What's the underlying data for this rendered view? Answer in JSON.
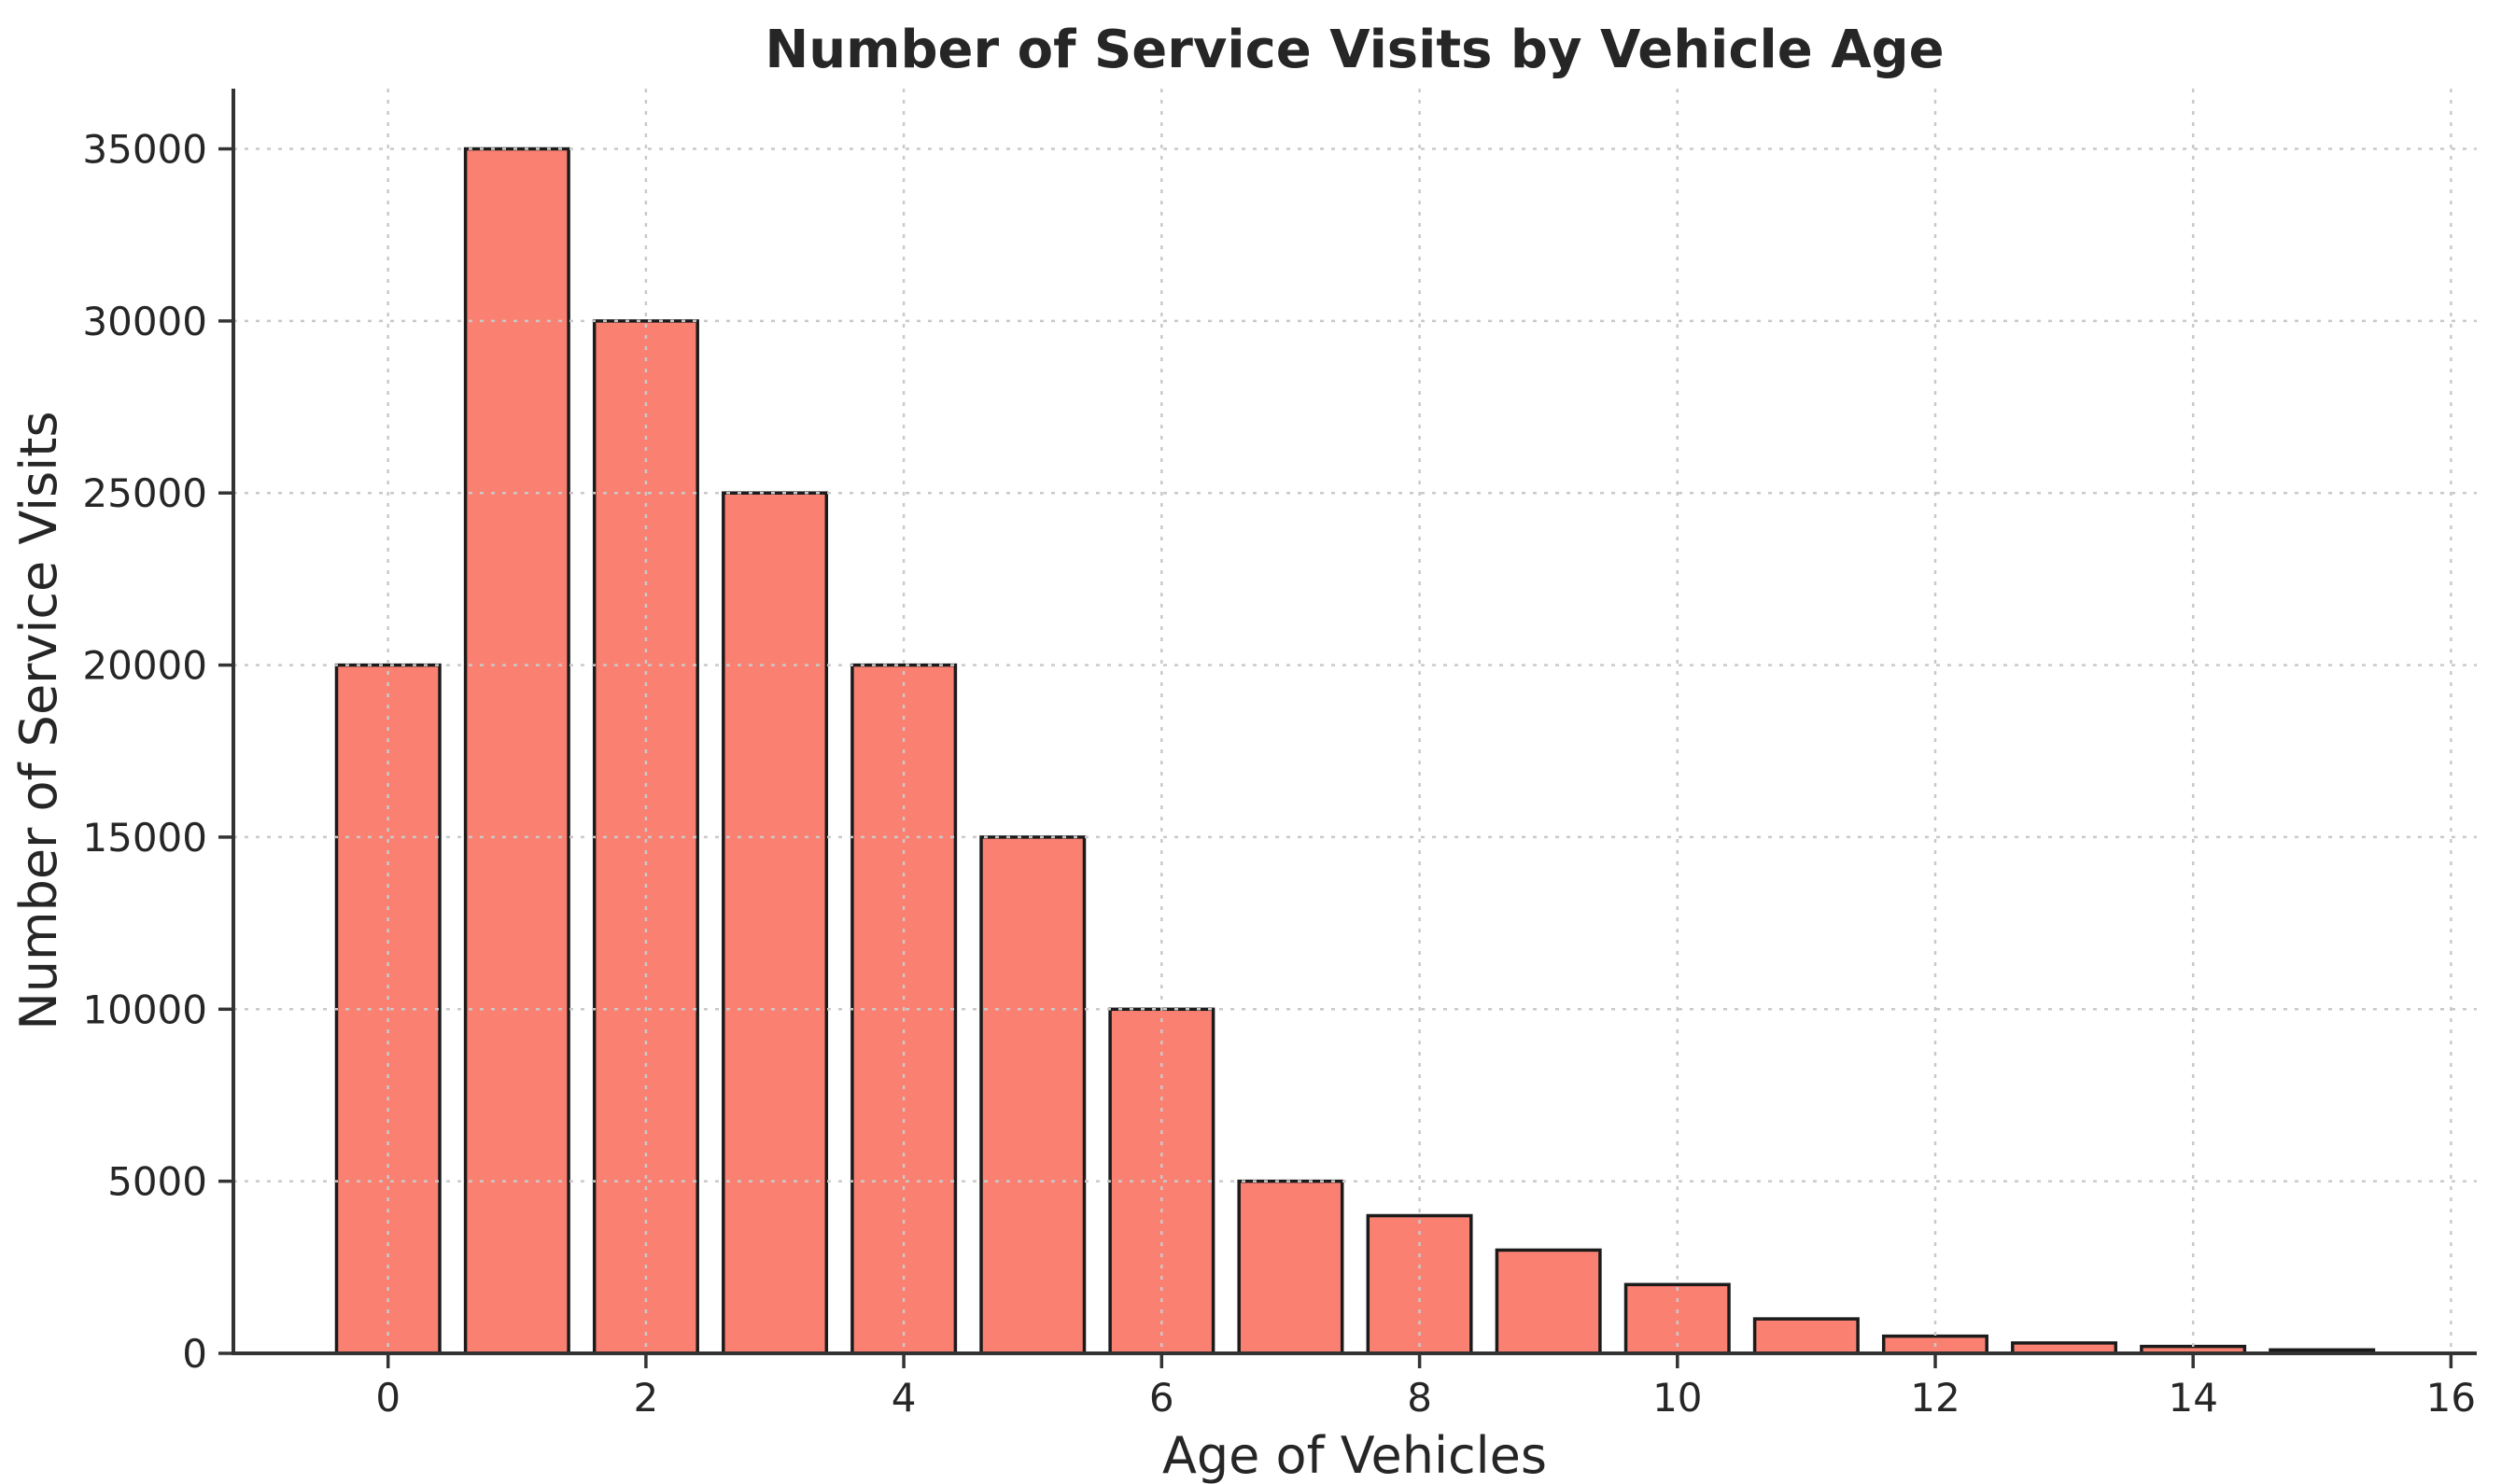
{
  "chart_data": {
    "type": "bar",
    "title": "Number of Service Visits by Vehicle Age",
    "xlabel": "Age of Vehicles",
    "ylabel": "Number of Service Visits",
    "categories": [
      0,
      1,
      2,
      3,
      4,
      5,
      6,
      7,
      8,
      9,
      10,
      11,
      12,
      13,
      14,
      15
    ],
    "values": [
      20000,
      35000,
      30000,
      25000,
      20000,
      15000,
      10000,
      5000,
      4000,
      3000,
      2000,
      1000,
      500,
      300,
      200,
      100
    ],
    "x_ticks": [
      0,
      2,
      4,
      6,
      8,
      10,
      12,
      14,
      16
    ],
    "y_ticks": [
      0,
      5000,
      10000,
      15000,
      20000,
      25000,
      30000,
      35000
    ],
    "xlim": [
      -1.2,
      16.2
    ],
    "ylim": [
      0,
      36750
    ],
    "bar_width": 0.8,
    "grid": true,
    "grid_style": "dashed",
    "grid_above_bars": true,
    "legend": "none",
    "colors": {
      "bar_fill": "#FA8072",
      "bar_edge": "#1b1b1b",
      "grid": "#c9c9c9",
      "spine": "#333333",
      "tick": "#333333",
      "text": "#262626",
      "background": "#ffffff"
    }
  }
}
